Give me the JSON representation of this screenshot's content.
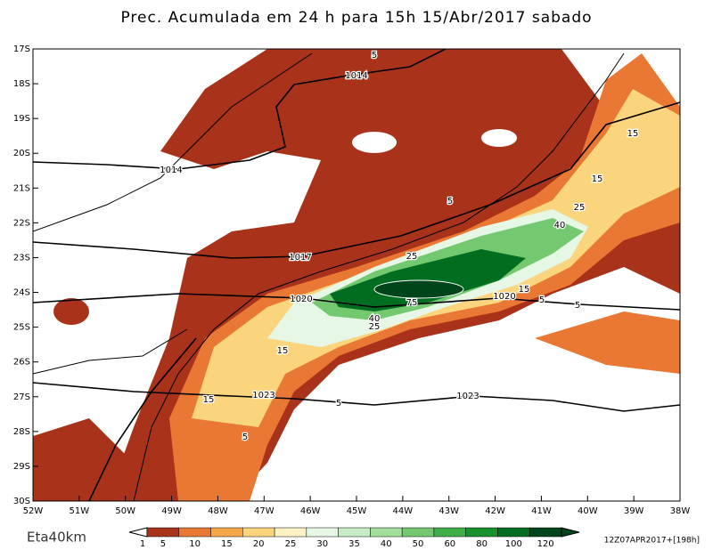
{
  "title": "Prec. Acumulada em 24 h para 15h 15/Abr/2017 sabado",
  "model": "Eta40km",
  "run": "12Z07APR2017+[198h]",
  "map": {
    "lat_labels": [
      "17S",
      "18S",
      "19S",
      "20S",
      "21S",
      "22S",
      "23S",
      "24S",
      "25S",
      "26S",
      "27S",
      "28S",
      "29S",
      "30S"
    ],
    "lon_labels": [
      "52W",
      "51W",
      "50W",
      "49W",
      "48W",
      "47W",
      "46W",
      "45W",
      "44W",
      "43W",
      "42W",
      "41W",
      "40W",
      "39W",
      "38W"
    ],
    "contour_labels": [
      5,
      1014,
      15,
      1014,
      15,
      25,
      5,
      40,
      25,
      1017,
      1020,
      75,
      1020,
      15,
      5,
      5,
      40,
      25,
      15,
      1023,
      15,
      5,
      5,
      1023
    ]
  },
  "colorbar": {
    "levels": [
      1,
      5,
      10,
      15,
      20,
      25,
      30,
      35,
      40,
      50,
      60,
      80,
      100,
      120
    ],
    "colors": [
      "#a8321a",
      "#e87833",
      "#f5a848",
      "#fbd57e",
      "#fff2c5",
      "#e6f7e5",
      "#c9ecc6",
      "#a2dd9c",
      "#74c86f",
      "#3fae49",
      "#17902e",
      "#006d20",
      "#00441b"
    ]
  }
}
